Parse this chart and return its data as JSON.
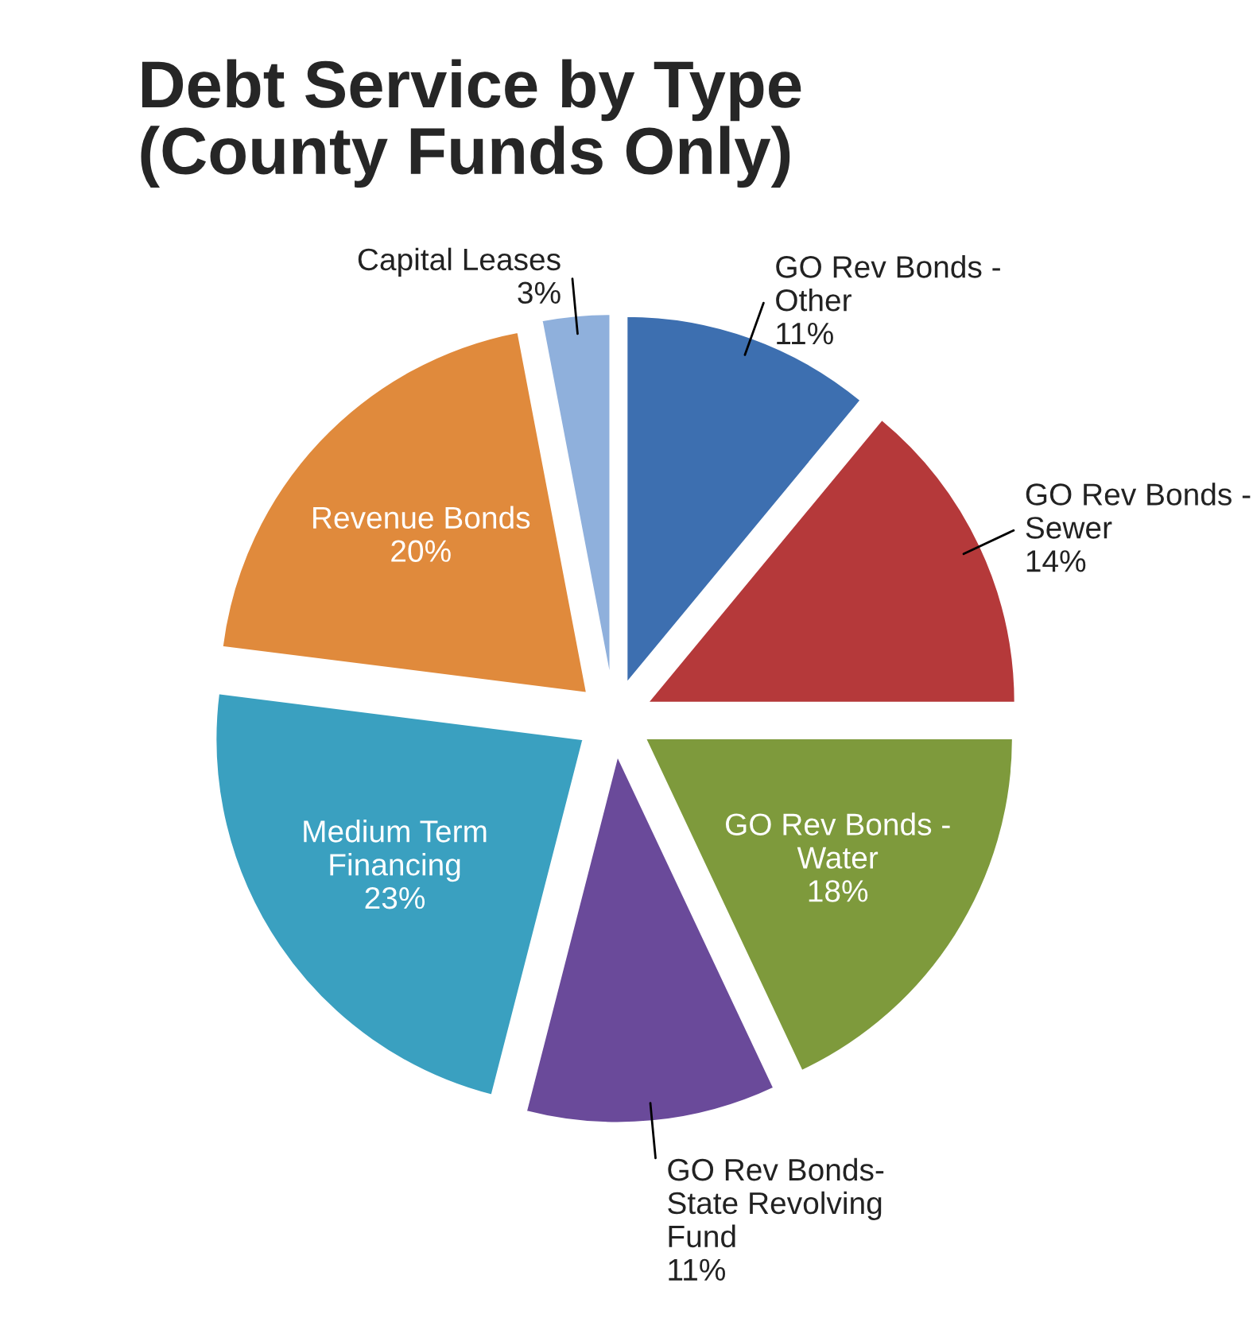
{
  "chart_data": {
    "type": "pie",
    "title": "Debt Service by Type\n(County Funds Only)",
    "categories": [
      "GO Rev Bonds -\nOther",
      "GO Rev Bonds -\nSewer",
      "GO Rev Bonds -\nWater",
      "GO Rev Bonds-\nState Revolving\nFund",
      "Medium Term\nFinancing",
      "Revenue Bonds",
      "Capital Leases"
    ],
    "values": [
      11,
      14,
      18,
      11,
      23,
      20,
      3
    ],
    "value_labels": [
      "11%",
      "14%",
      "18%",
      "11%",
      "23%",
      "20%",
      "3%"
    ],
    "colors": [
      "#3d6fb0",
      "#b5393a",
      "#7e9a3c",
      "#6a4a9a",
      "#3aa0c0",
      "#e08a3c",
      "#8fb0dc"
    ],
    "legend": false
  }
}
